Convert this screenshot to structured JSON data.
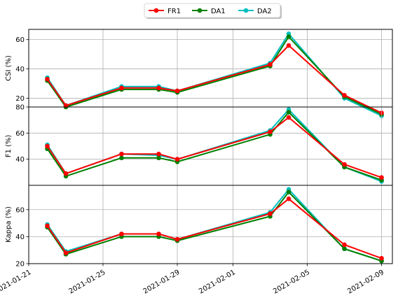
{
  "chart_data": {
    "type": "line",
    "legend": {
      "placement": "top-center",
      "entries": [
        "FR1",
        "DA1",
        "DA2"
      ]
    },
    "series_colors": {
      "FR1": "#ff0000",
      "DA1": "#008000",
      "DA2": "#00bfbf"
    },
    "x_dates": [
      "2021-01-22",
      "2021-01-23",
      "2021-01-26",
      "2021-01-28",
      "2021-01-29",
      "2021-02-03",
      "2021-02-04",
      "2021-02-07",
      "2021-02-09"
    ],
    "x_ticks": [
      "2021-01-21",
      "2021-01-25",
      "2021-01-29",
      "2021-02-01",
      "2021-02-05",
      "2021-02-09"
    ],
    "xlim": [
      "2021-01-21",
      "2021-02-09T14:00"
    ],
    "grid": true,
    "panels": [
      {
        "ylabel": "CSI (%)",
        "ylim": [
          14,
          67
        ],
        "yticks": [
          "20",
          "40",
          "60"
        ],
        "series": [
          {
            "name": "FR1",
            "values": [
              33,
              15,
              27,
              27,
              25,
              43,
              56,
              22,
              10
            ]
          },
          {
            "name": "DA1",
            "values": [
              32,
              14,
              26,
              26,
              24,
              42,
              62,
              21,
              9
            ]
          },
          {
            "name": "DA2",
            "values": [
              34,
              15,
              28,
              28,
              25,
              44,
              64,
              20,
              8
            ]
          }
        ]
      },
      {
        "ylabel": "F1 (%)",
        "ylim": [
          20,
          80
        ],
        "yticks": [
          "40",
          "60",
          "80"
        ],
        "series": [
          {
            "name": "FR1",
            "values": [
              50,
              29,
              44,
              44,
              40,
              61,
              72,
              36,
              26
            ]
          },
          {
            "name": "DA1",
            "values": [
              48,
              27,
              41,
              41,
              38,
              59,
              76,
              34,
              24
            ]
          },
          {
            "name": "DA2",
            "values": [
              51,
              29,
              44,
              43,
              40,
              62,
              78,
              34,
              23
            ]
          }
        ]
      },
      {
        "ylabel": "Kappa (%)",
        "ylim": [
          20,
          78
        ],
        "yticks": [
          "20",
          "40",
          "60"
        ],
        "series": [
          {
            "name": "FR1",
            "values": [
              48,
              28,
              42,
              42,
              38,
              57,
              68,
              34,
              24
            ]
          },
          {
            "name": "DA1",
            "values": [
              47,
              27,
              40,
              40,
              37,
              55,
              73,
              31,
              22
            ]
          },
          {
            "name": "DA2",
            "values": [
              49,
              29,
              42,
              42,
              38,
              58,
              75,
              31,
              22
            ]
          }
        ]
      }
    ]
  }
}
